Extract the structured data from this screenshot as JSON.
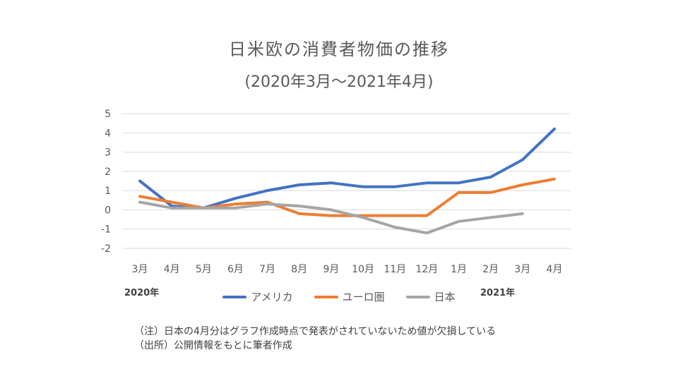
{
  "chart_data": {
    "type": "line",
    "title": "日米欧の消費者物価の推移",
    "subtitle": "(2020年3月～2021年4月)",
    "categories": [
      "3月",
      "4月",
      "5月",
      "6月",
      "7月",
      "8月",
      "9月",
      "10月",
      "11月",
      "12月",
      "1月",
      "2月",
      "3月",
      "4月"
    ],
    "year_labels": [
      "2020年",
      "2021年"
    ],
    "yticks": [
      "5",
      "4",
      "3",
      "2",
      "1",
      "0",
      "-1",
      "-2"
    ],
    "ylim": [
      -2,
      5
    ],
    "grid": true,
    "legend_position": "bottom",
    "series": [
      {
        "name": "アメリカ",
        "color": "#4472C4",
        "values": [
          1.5,
          0.2,
          0.1,
          0.6,
          1.0,
          1.3,
          1.4,
          1.2,
          1.2,
          1.4,
          1.4,
          1.7,
          2.6,
          4.2
        ]
      },
      {
        "name": "ユーロ圏",
        "color": "#ED7D31",
        "values": [
          0.7,
          0.4,
          0.1,
          0.3,
          0.4,
          -0.2,
          -0.3,
          -0.3,
          -0.3,
          -0.3,
          0.9,
          0.9,
          1.3,
          1.6
        ]
      },
      {
        "name": "日本",
        "color": "#A5A5A5",
        "values": [
          0.4,
          0.1,
          0.1,
          0.1,
          0.3,
          0.2,
          0.0,
          -0.4,
          -0.9,
          -1.2,
          -0.6,
          -0.4,
          -0.2,
          null
        ]
      }
    ]
  },
  "notes": {
    "line1": "（注）日本の4月分はグラフ作成時点で発表がされていないため値が欠損している",
    "line2": "（出所）公開情報をもとに筆者作成"
  }
}
